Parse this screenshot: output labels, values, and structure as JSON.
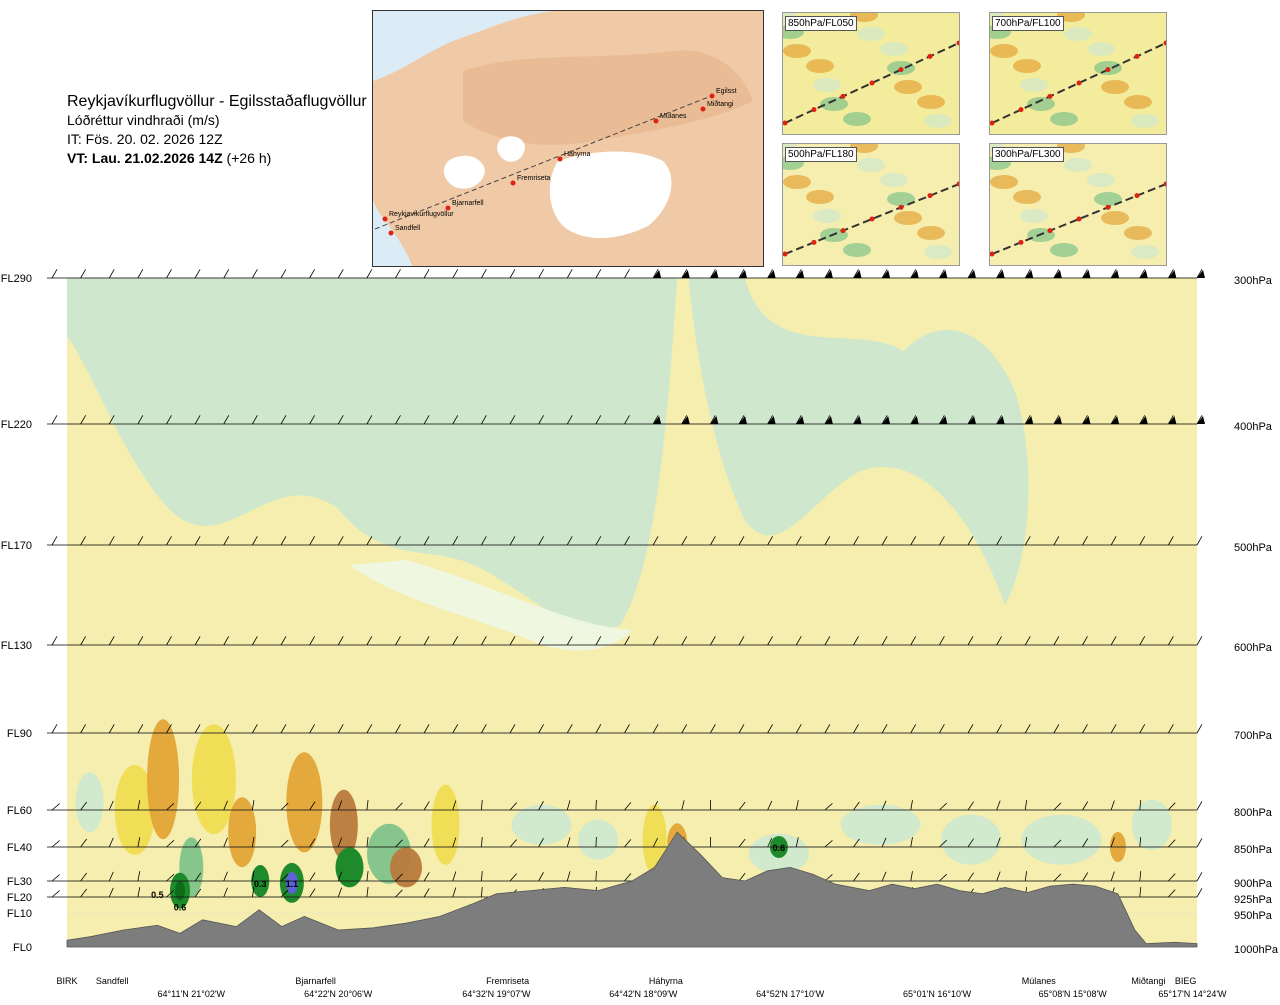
{
  "title": {
    "route": "Reykjavíkurflugvöllur - Egilsstaðaflugvöllur",
    "field": "Lóðréttur vindhraði (m/s)",
    "it": "IT: Fös. 20. 02. 2026 12Z",
    "vt_bold": "VT: Lau. 21.02.2026 14Z",
    "vt_offset": "(+26 h)"
  },
  "map": {
    "waypoints": [
      "Reykjavíkurflugvöllur",
      "Sandfell",
      "Bjarnarfell",
      "Fremriseta",
      "Háhyrna",
      "Múlanes",
      "Egilsst",
      "Miðtangi"
    ]
  },
  "insets": [
    {
      "label": "850hPa/FL050"
    },
    {
      "label": "700hPa/FL100"
    },
    {
      "label": "500hPa/FL180"
    },
    {
      "label": "300hPa/FL300"
    }
  ],
  "colors": {
    "green_light": "#cfe8cd",
    "green_pale": "#eef7e6",
    "yellow_pale": "#f5eeae",
    "yellow": "#f0dc52",
    "orange": "#e2a437",
    "brown": "#b87a3c",
    "green_mid": "#7fc38a",
    "green_dark": "#1f8a2b",
    "green_deep": "#0e6b1a",
    "blue": "#5b63d6",
    "terrain": "#7d7d7d",
    "map_land": "#f0c9a6",
    "map_sea": "#dcecf6"
  },
  "chart_data": {
    "type": "heatmap",
    "title": "Lóðréttur vindhraði (m/s)",
    "levels_left": [
      "FL290",
      "FL220",
      "FL170",
      "FL130",
      "FL90",
      "FL60",
      "FL40",
      "FL30",
      "FL20",
      "FL10",
      "FL0"
    ],
    "levels_right": [
      "300hPa",
      "400hPa",
      "500hPa",
      "600hPa",
      "700hPa",
      "800hPa",
      "850hPa",
      "900hPa",
      "925hPa",
      "950hPa",
      "1000hPa"
    ],
    "pressure_values": [
      300,
      400,
      500,
      600,
      700,
      800,
      850,
      900,
      925,
      950,
      1000
    ],
    "x_labels": [
      {
        "name": "BIRK",
        "pos": 0.0
      },
      {
        "name": "Sandfell",
        "pos": 0.04
      },
      {
        "name": "Bjarnarfell",
        "pos": 0.22
      },
      {
        "name": "Fremriseta",
        "pos": 0.39
      },
      {
        "name": "Háhyrna",
        "pos": 0.53
      },
      {
        "name": "Múlanes",
        "pos": 0.86
      },
      {
        "name": "Miðtangi",
        "pos": 0.957
      },
      {
        "name": "BIEG",
        "pos": 0.99
      }
    ],
    "x_coords": [
      {
        "label": "64°11'N 21°02'W",
        "pos": 0.11
      },
      {
        "label": "64°22'N 20°06'W",
        "pos": 0.24
      },
      {
        "label": "64°32'N 19°07'W",
        "pos": 0.38
      },
      {
        "label": "64°42'N 18°09'W",
        "pos": 0.51
      },
      {
        "label": "64°52'N 17°10'W",
        "pos": 0.64
      },
      {
        "label": "65°01'N 16°10'W",
        "pos": 0.77
      },
      {
        "label": "65°08'N 15°08'W",
        "pos": 0.89
      },
      {
        "label": "65°17'N 14°24'W",
        "pos": 0.996
      }
    ],
    "annotations": [
      {
        "text": "0.5",
        "x": 0.08,
        "p": 920
      },
      {
        "text": "0.6",
        "x": 0.1,
        "p": 940
      },
      {
        "text": "0.3",
        "x": 0.171,
        "p": 903
      },
      {
        "text": "1.1",
        "x": 0.199,
        "p": 903
      },
      {
        "text": "0.6",
        "x": 0.63,
        "p": 850
      }
    ],
    "terrain_profile": [
      [
        0.0,
        990
      ],
      [
        0.02,
        985
      ],
      [
        0.05,
        975
      ],
      [
        0.08,
        968
      ],
      [
        0.1,
        980
      ],
      [
        0.12,
        960
      ],
      [
        0.15,
        970
      ],
      [
        0.17,
        945
      ],
      [
        0.19,
        970
      ],
      [
        0.21,
        955
      ],
      [
        0.24,
        975
      ],
      [
        0.27,
        972
      ],
      [
        0.3,
        965
      ],
      [
        0.33,
        955
      ],
      [
        0.36,
        935
      ],
      [
        0.38,
        920
      ],
      [
        0.41,
        915
      ],
      [
        0.44,
        910
      ],
      [
        0.47,
        915
      ],
      [
        0.5,
        900
      ],
      [
        0.52,
        880
      ],
      [
        0.54,
        830
      ],
      [
        0.56,
        860
      ],
      [
        0.58,
        895
      ],
      [
        0.6,
        900
      ],
      [
        0.62,
        885
      ],
      [
        0.64,
        880
      ],
      [
        0.66,
        890
      ],
      [
        0.68,
        905
      ],
      [
        0.71,
        915
      ],
      [
        0.73,
        905
      ],
      [
        0.75,
        912
      ],
      [
        0.77,
        905
      ],
      [
        0.79,
        915
      ],
      [
        0.81,
        920
      ],
      [
        0.83,
        910
      ],
      [
        0.85,
        918
      ],
      [
        0.87,
        908
      ],
      [
        0.89,
        905
      ],
      [
        0.91,
        908
      ],
      [
        0.93,
        920
      ],
      [
        0.945,
        975
      ],
      [
        0.955,
        995
      ],
      [
        0.98,
        993
      ],
      [
        1.0,
        995
      ]
    ]
  }
}
